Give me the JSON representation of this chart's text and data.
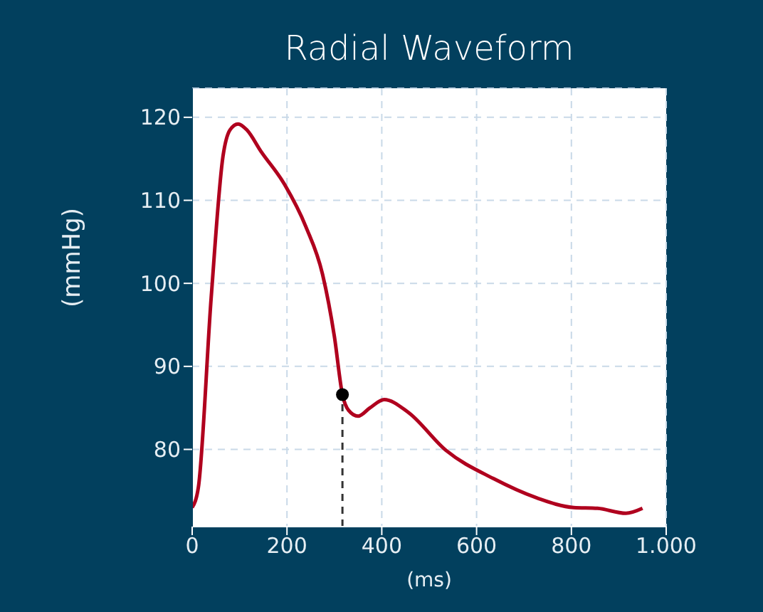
{
  "chart_data": {
    "type": "line",
    "title": "Radial Waveform",
    "xlabel": "(ms)",
    "ylabel": "(mmHg)",
    "xlim": [
      0,
      1000
    ],
    "xticks": [
      0,
      200,
      400,
      600,
      800,
      {
        "value": 1000,
        "label": "1.000"
      }
    ],
    "ylim": [
      70.7,
      123.5
    ],
    "yticks": [
      80,
      90,
      100,
      110,
      120
    ],
    "grid": true,
    "legend": false,
    "series": [
      {
        "color": "#b0001e",
        "marker": "none",
        "x": [
          0,
          13,
          40,
          65,
          80,
          97,
          115,
          145,
          195,
          240,
          275,
          300,
          317,
          330,
          350,
          375,
          405,
          455,
          535,
          635,
          725,
          805,
          855,
          915,
          950
        ],
        "values": [
          73.0,
          75.4,
          98.2,
          115.3,
          118.5,
          119.2,
          118.5,
          115.9,
          111.9,
          106.8,
          101.1,
          93.6,
          86.6,
          84.7,
          84.0,
          85.0,
          86.0,
          84.5,
          79.9,
          76.5,
          74.2,
          73.0,
          72.9,
          72.3,
          72.9
        ]
      },
      {
        "type": "scatter",
        "color": "#000000",
        "marker": "circle",
        "x": [
          317
        ],
        "values": [
          86.6
        ]
      }
    ],
    "ref_lines": [
      {
        "axis": "x",
        "value": 317,
        "color": "#333333",
        "line_style": "dashed"
      }
    ]
  }
}
